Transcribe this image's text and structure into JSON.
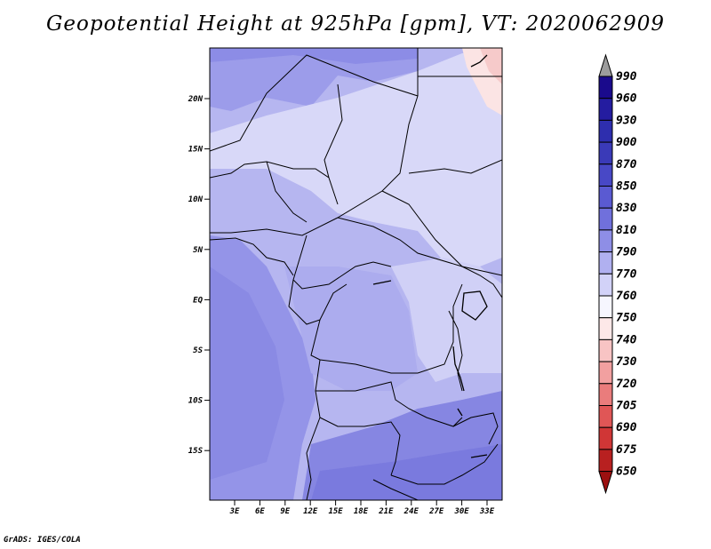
{
  "title": "Geopotential Height at 925hPa [gpm], VT: 2020062909",
  "footer": "GrADS: IGES/COLA",
  "map": {
    "lat_ticks": [
      "20N",
      "15N",
      "10N",
      "5N",
      "EQ",
      "5S",
      "10S",
      "15S"
    ],
    "lon_ticks": [
      "3E",
      "6E",
      "9E",
      "12E",
      "15E",
      "18E",
      "21E",
      "24E",
      "27E",
      "30E",
      "33E"
    ]
  },
  "colorbar": {
    "levels": [
      "990",
      "960",
      "930",
      "900",
      "870",
      "850",
      "830",
      "810",
      "790",
      "770",
      "760",
      "750",
      "740",
      "730",
      "720",
      "705",
      "690",
      "675",
      "650"
    ],
    "colors": [
      "#1a0a8c",
      "#241ca0",
      "#2e2eae",
      "#3a3ab8",
      "#4848c6",
      "#5a5ad2",
      "#7070dc",
      "#8e8ee6",
      "#b0b0f0",
      "#d2d2f8",
      "#f6f6fe",
      "#fde8e8",
      "#f8c4c4",
      "#f2a0a0",
      "#ea7c7c",
      "#e05656",
      "#d03636",
      "#b82020",
      "#9c1010"
    ]
  }
}
